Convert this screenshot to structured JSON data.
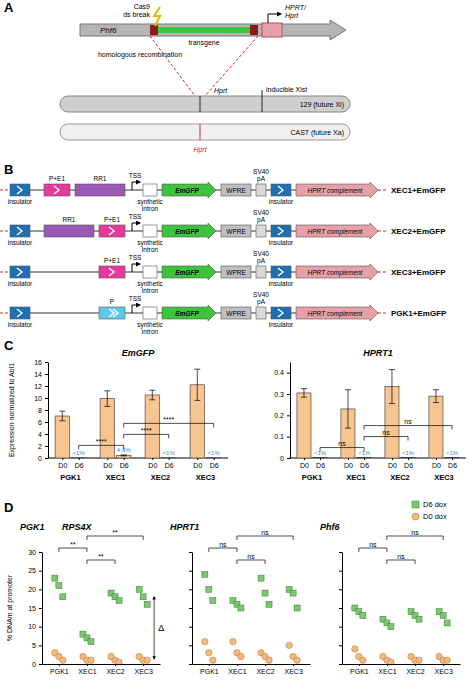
{
  "panel_labels": [
    "A",
    "B",
    "C",
    "D"
  ],
  "diagram_a": {
    "gene_left": "Phf6",
    "cas9": [
      "Cas9",
      "ds break"
    ],
    "gene_right": [
      "HPRT/",
      "Hprt"
    ],
    "transgene": "transgene",
    "recombination": "homologous recombination",
    "locus_top": "Hprt",
    "xist": "inducible Xist",
    "chrom_xi": "129 (future Xi)",
    "chrom_xa": "CAST (future Xa)",
    "locus_bottom": "Hprt"
  },
  "diagram_b": {
    "constructs": [
      {
        "name": "XEC1+EmGFP",
        "elements": [
          {
            "label": [
              "insulator"
            ],
            "color": "#1f6fb5"
          },
          {
            "label": [
              "P+E1"
            ],
            "color": "#e5399b"
          },
          {
            "label": [
              "RR1"
            ],
            "color": "#9b59b6"
          },
          {
            "label": [
              "TSS"
            ],
            "color": "#000000"
          },
          {
            "label": [
              "synthetic",
              "intron"
            ],
            "color": "#ffffff"
          },
          {
            "label": [
              "EmGFP"
            ],
            "color": "#3cc43c"
          },
          {
            "label": [
              "WPRE"
            ],
            "color": "#bfbfbf"
          },
          {
            "label": [
              "SV40",
              "pA"
            ],
            "color": "#d9d9d9"
          },
          {
            "label": [
              "insulator"
            ],
            "color": "#1f6fb5"
          },
          {
            "label": [
              "HPRT complement"
            ],
            "color": "#e8a0a8"
          }
        ]
      },
      {
        "name": "XEC2+EmGFP",
        "elements": [
          {
            "label": [
              "insulator"
            ],
            "color": "#1f6fb5"
          },
          {
            "label": [
              "RR1"
            ],
            "color": "#9b59b6"
          },
          {
            "label": [
              "P+E1"
            ],
            "color": "#e5399b"
          },
          {
            "label": [
              "TSS"
            ],
            "color": "#000000"
          },
          {
            "label": [
              "synthetic",
              "intron"
            ],
            "color": "#ffffff"
          },
          {
            "label": [
              "EmGFP"
            ],
            "color": "#3cc43c"
          },
          {
            "label": [
              "WPRE"
            ],
            "color": "#bfbfbf"
          },
          {
            "label": [
              "SV40",
              "pA"
            ],
            "color": "#d9d9d9"
          },
          {
            "label": [
              "insulator"
            ],
            "color": "#1f6fb5"
          },
          {
            "label": [
              "HPRT complement"
            ],
            "color": "#e8a0a8"
          }
        ]
      },
      {
        "name": "XEC3+EmGFP",
        "elements": [
          {
            "label": [
              "insulator"
            ],
            "color": "#1f6fb5"
          },
          {
            "label": [
              "P+E1"
            ],
            "color": "#e5399b"
          },
          {
            "label": [
              "TSS"
            ],
            "color": "#000000"
          },
          {
            "label": [
              "synthetic",
              "intron"
            ],
            "color": "#ffffff"
          },
          {
            "label": [
              "EmGFP"
            ],
            "color": "#3cc43c"
          },
          {
            "label": [
              "WPRE"
            ],
            "color": "#bfbfbf"
          },
          {
            "label": [
              "SV40",
              "pA"
            ],
            "color": "#d9d9d9"
          },
          {
            "label": [
              "insulator"
            ],
            "color": "#1f6fb5"
          },
          {
            "label": [
              "HPRT complement"
            ],
            "color": "#e8a0a8"
          }
        ]
      },
      {
        "name": "PGK1+EmGFP",
        "elements": [
          {
            "label": [
              "insulator"
            ],
            "color": "#1f6fb5"
          },
          {
            "label": [
              "P"
            ],
            "color": "#5ec8e8"
          },
          {
            "label": [
              "TSS"
            ],
            "color": "#000000"
          },
          {
            "label": [
              "synthetic",
              "intron"
            ],
            "color": "#ffffff"
          },
          {
            "label": [
              "EmGFP"
            ],
            "color": "#3cc43c"
          },
          {
            "label": [
              "WPRE"
            ],
            "color": "#bfbfbf"
          },
          {
            "label": [
              "SV40",
              "pA"
            ],
            "color": "#d9d9d9"
          },
          {
            "label": [
              "insulator"
            ],
            "color": "#1f6fb5"
          },
          {
            "label": [
              "HPRT complement"
            ],
            "color": "#e8a0a8"
          }
        ]
      }
    ]
  },
  "chart_data": [
    {
      "type": "bar",
      "title": "EmGFP",
      "y_label": "Expression normalized to Abl1",
      "groups": [
        "PGK1",
        "XEC1",
        "XEC2",
        "XEC3"
      ],
      "categories": [
        "D0",
        "D6",
        "D0",
        "D6",
        "D0",
        "D6",
        "D0",
        "D6"
      ],
      "values": [
        7.0,
        0.05,
        9.9,
        0.44,
        10.5,
        0.05,
        12.2,
        0.05
      ],
      "errors": [
        0.8,
        null,
        1.3,
        0.08,
        0.8,
        null,
        2.6,
        null
      ],
      "relative_labels": [
        null,
        "<1%",
        null,
        "4.4%",
        null,
        "<1%",
        null,
        "<1%"
      ],
      "color": "#f8c48f",
      "ylim": [
        0,
        16
      ],
      "yticks": [
        0,
        2,
        4,
        6,
        8,
        10,
        12,
        14,
        16
      ],
      "comparisons": [
        {
          "pair": [
            "PGK1",
            "XEC1"
          ],
          "label": "****"
        },
        {
          "pair": [
            "XEC1",
            "XEC2"
          ],
          "label": "****"
        },
        {
          "pair": [
            "XEC1",
            "XEC3"
          ],
          "label": "****"
        }
      ]
    },
    {
      "type": "bar",
      "title": "HPRT1",
      "groups": [
        "PGK1",
        "XEC1",
        "XEC2",
        "XEC3"
      ],
      "categories": [
        "D0",
        "D6",
        "D0",
        "D6",
        "D0",
        "D6",
        "D0",
        "D6"
      ],
      "values": [
        0.305,
        0.002,
        0.23,
        0.002,
        0.335,
        0.002,
        0.29,
        0.002
      ],
      "errors": [
        0.02,
        null,
        0.09,
        null,
        0.08,
        null,
        0.03,
        null
      ],
      "relative_labels": [
        null,
        "<1%",
        null,
        "<1%",
        null,
        "<1%",
        null,
        "<1%"
      ],
      "color": "#f8c48f",
      "ylim": [
        0,
        0.45
      ],
      "yticks": [
        0,
        0.1,
        0.2,
        0.3,
        0.4
      ],
      "comparisons": [
        {
          "pair": [
            "PGK1",
            "XEC1"
          ],
          "label": "ns"
        },
        {
          "pair": [
            "XEC1",
            "XEC2"
          ],
          "label": "ns"
        },
        {
          "pair": [
            "XEC1",
            "XEC3"
          ],
          "label": "ns"
        }
      ]
    },
    {
      "type": "scatter",
      "title": [
        "PGK1",
        "RPS4X"
      ],
      "y_label": "% DNAm at promoter",
      "categories": [
        "PGK1",
        "XEC1",
        "XEC2",
        "XEC3"
      ],
      "series": [
        {
          "color": "#7bc96f",
          "marker": "square",
          "values": [
            [
              23,
              21,
              18
            ],
            [
              8,
              7,
              6
            ],
            [
              19,
              18,
              17
            ],
            [
              20,
              18,
              16
            ]
          ]
        },
        {
          "color": "#f4b97f",
          "marker": "circle",
          "values": [
            [
              3,
              2,
              1
            ],
            [
              2,
              1,
              1
            ],
            [
              2,
              1,
              0.5
            ],
            [
              2,
              1,
              1
            ]
          ]
        }
      ],
      "ylim": [
        0,
        30
      ],
      "yticks": [
        0,
        5,
        10,
        15,
        20,
        25,
        30
      ],
      "annotation": "Δ",
      "comparisons": [
        {
          "pair": [
            "PGK1",
            "XEC1"
          ],
          "label": "**"
        },
        {
          "pair": [
            "XEC1",
            "XEC2"
          ],
          "label": "**"
        },
        {
          "pair": [
            "XEC1",
            "XEC3"
          ],
          "label": "**"
        }
      ]
    },
    {
      "type": "scatter",
      "title": "HPRT1",
      "categories": [
        "PGK1",
        "XEC1",
        "XEC2",
        "XEC3"
      ],
      "series": [
        {
          "color": "#7bc96f",
          "marker": "square",
          "values": [
            [
              24,
              20,
              17
            ],
            [
              17,
              16,
              15
            ],
            [
              23,
              19,
              16
            ],
            [
              20,
              19,
              15
            ]
          ]
        },
        {
          "color": "#f4b97f",
          "marker": "circle",
          "values": [
            [
              6,
              3,
              1
            ],
            [
              6,
              3,
              2
            ],
            [
              3,
              2,
              1
            ],
            [
              5,
              2,
              1
            ]
          ]
        }
      ],
      "ylim": [
        0,
        30
      ],
      "yticks": [
        0,
        5,
        10,
        15,
        20,
        25,
        30
      ],
      "tick_labels": "x",
      "comparisons": [
        {
          "pair": [
            "PGK1",
            "XEC1"
          ],
          "label": "ns"
        },
        {
          "pair": [
            "XEC1",
            "XEC2"
          ],
          "label": "ns"
        },
        {
          "pair": [
            "XEC1",
            "XEC3"
          ],
          "label": "ns"
        }
      ]
    },
    {
      "type": "scatter",
      "title": "Phf6",
      "categories": [
        "PGK1",
        "XEC1",
        "XEC2",
        "XEC3"
      ],
      "series": [
        {
          "name": "D6 dox",
          "color": "#7bc96f",
          "marker": "square",
          "values": [
            [
              15,
              14,
              13
            ],
            [
              12,
              11,
              10
            ],
            [
              14,
              13,
              12
            ],
            [
              14,
              13,
              11
            ]
          ]
        },
        {
          "name": "D0 dox",
          "color": "#f4b97f",
          "marker": "circle",
          "values": [
            [
              4,
              2,
              1
            ],
            [
              2,
              1,
              0.5
            ],
            [
              2,
              1,
              1
            ],
            [
              2,
              1,
              1
            ]
          ]
        }
      ],
      "ylim": [
        0,
        30
      ],
      "yticks": [
        0,
        5,
        10,
        15,
        20,
        25,
        30
      ],
      "tick_labels": "x",
      "legend": "top-right",
      "comparisons": [
        {
          "pair": [
            "PGK1",
            "XEC1"
          ],
          "label": "ns"
        },
        {
          "pair": [
            "XEC1",
            "XEC2"
          ],
          "label": "ns"
        },
        {
          "pair": [
            "XEC1",
            "XEC3"
          ],
          "label": "ns"
        }
      ]
    }
  ]
}
